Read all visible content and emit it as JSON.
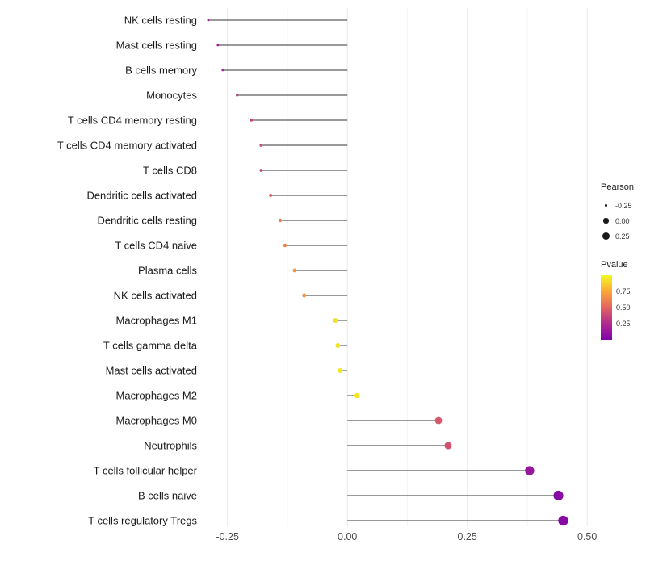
{
  "chart_data": {
    "type": "scatter",
    "variant": "lollipop",
    "title": "",
    "xlabel": "",
    "ylabel": "",
    "grid": true,
    "xlim": [
      -0.3,
      0.53
    ],
    "size_encodes": "Pearson",
    "color_encodes": "Pvalue",
    "x_ticks": [
      {
        "value": -0.25,
        "label": "-0.25"
      },
      {
        "value": 0.0,
        "label": "0.00"
      },
      {
        "value": 0.25,
        "label": "0.25"
      },
      {
        "value": 0.5,
        "label": "0.50"
      }
    ],
    "points": [
      {
        "category": "NK cells resting",
        "pearson": -0.29,
        "pvalue": 0.18
      },
      {
        "category": "Mast cells resting",
        "pearson": -0.27,
        "pvalue": 0.16
      },
      {
        "category": "B cells memory",
        "pearson": -0.26,
        "pvalue": 0.18
      },
      {
        "category": "Monocytes",
        "pearson": -0.23,
        "pvalue": 0.3
      },
      {
        "category": "T cells CD4 memory resting",
        "pearson": -0.2,
        "pvalue": 0.35
      },
      {
        "category": "T cells CD4 memory activated",
        "pearson": -0.18,
        "pvalue": 0.4
      },
      {
        "category": "T cells CD8",
        "pearson": -0.18,
        "pvalue": 0.4
      },
      {
        "category": "Dendritic cells activated",
        "pearson": -0.16,
        "pvalue": 0.5
      },
      {
        "category": "Dendritic cells resting",
        "pearson": -0.14,
        "pvalue": 0.6
      },
      {
        "category": "T cells CD4 naive",
        "pearson": -0.13,
        "pvalue": 0.62
      },
      {
        "category": "Plasma cells",
        "pearson": -0.11,
        "pvalue": 0.68
      },
      {
        "category": "NK cells activated",
        "pearson": -0.09,
        "pvalue": 0.68
      },
      {
        "category": "Macrophages M1",
        "pearson": -0.025,
        "pvalue": 0.92
      },
      {
        "category": "T cells gamma delta",
        "pearson": -0.02,
        "pvalue": 0.93
      },
      {
        "category": "Mast cells activated",
        "pearson": -0.015,
        "pvalue": 0.95
      },
      {
        "category": "Macrophages M2",
        "pearson": 0.02,
        "pvalue": 0.94
      },
      {
        "category": "Macrophages M0",
        "pearson": 0.19,
        "pvalue": 0.45
      },
      {
        "category": "Neutrophils",
        "pearson": 0.21,
        "pvalue": 0.42
      },
      {
        "category": "T cells follicular helper",
        "pearson": 0.38,
        "pvalue": 0.12
      },
      {
        "category": "B cells naive",
        "pearson": 0.44,
        "pvalue": 0.04
      },
      {
        "category": "T cells regulatory  Tregs",
        "pearson": 0.45,
        "pvalue": 0.04
      }
    ]
  },
  "legend": {
    "pearson": {
      "title": "Pearson",
      "items": [
        {
          "label": "-0.25",
          "value": -0.25
        },
        {
          "label": "0.00",
          "value": 0.0
        },
        {
          "label": "0.25",
          "value": 0.25
        }
      ]
    },
    "pvalue": {
      "title": "Pvalue",
      "ticks": [
        {
          "label": "0.75",
          "value": 0.75
        },
        {
          "label": "0.50",
          "value": 0.5
        },
        {
          "label": "0.25",
          "value": 0.25
        }
      ],
      "colormap_stops": [
        "#7e03a8",
        "#b12a90",
        "#e16462",
        "#fca636",
        "#f0f921"
      ]
    }
  },
  "colors": {
    "stem": "#333333",
    "grid_major": "#e9e9e9",
    "grid_minor": "#f4f4f4",
    "label_text": "#1a1a1a",
    "axis_text": "#4d4d4d",
    "legend_dot": "#1a1a1a",
    "background": "#ffffff"
  }
}
